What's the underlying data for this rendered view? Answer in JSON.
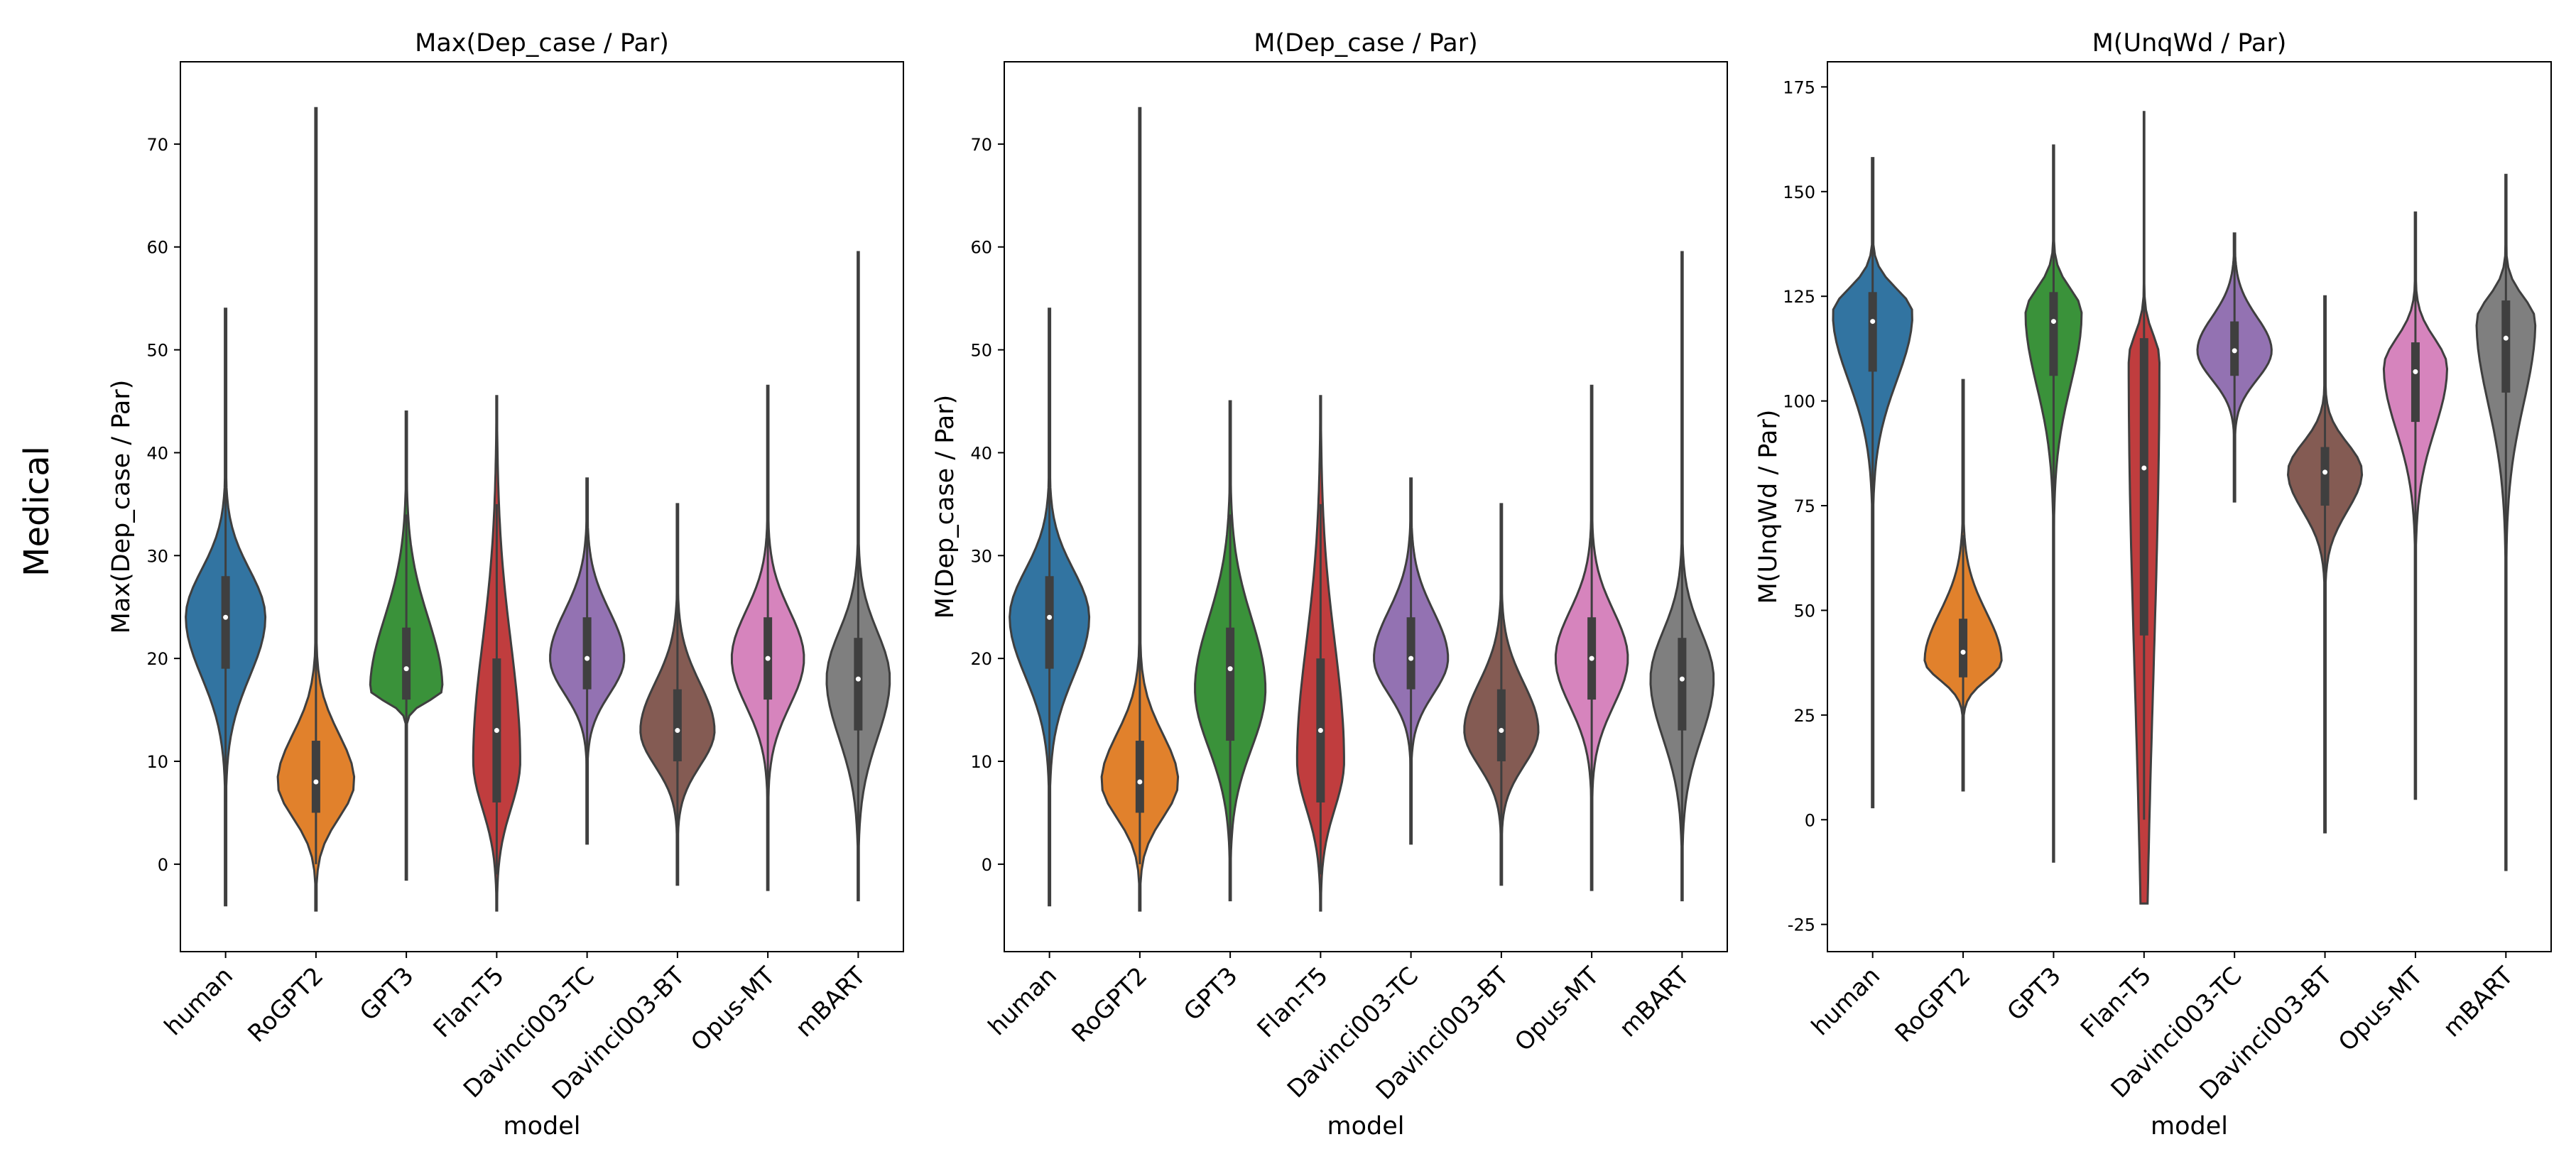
{
  "figure": {
    "row_label": "Medical"
  },
  "colors": {
    "human": "#3274a1",
    "RoGPT2": "#e1812c",
    "GPT3": "#3a923a",
    "Flan-T5": "#c03d3e",
    "Davinci003-TC": "#9372b2",
    "Davinci003-BT": "#845b53",
    "Opus-MT": "#d684bd",
    "mBART": "#7f7f7f"
  },
  "chart_data": [
    {
      "type": "violin",
      "title": "Max(Dep_case / Par)",
      "xlabel": "model",
      "ylabel": "Max(Dep_case / Par)",
      "categories": [
        "human",
        "RoGPT2",
        "GPT3",
        "Flan-T5",
        "Davinci003-TC",
        "Davinci003-BT",
        "Opus-MT",
        "mBART"
      ],
      "ylim": [
        -8.5,
        78
      ],
      "yticks": [
        0,
        10,
        20,
        30,
        40,
        50,
        60,
        70
      ],
      "violins": [
        {
          "min": -4,
          "max": 54,
          "q1": 19,
          "median": 24,
          "q3": 28,
          "w_lo": 6,
          "w_hi": 41,
          "mode": 24,
          "width": 0.88
        },
        {
          "min": -4.5,
          "max": 73.5,
          "q1": 5,
          "median": 8,
          "q3": 12,
          "w_lo": 0,
          "w_hi": 22,
          "mode": 8,
          "width": 0.85
        },
        {
          "min": -1.5,
          "max": 44,
          "q1": 16,
          "median": 19,
          "q3": 23,
          "w_lo": 6,
          "w_hi": 34,
          "mode": 17,
          "width": 0.8
        },
        {
          "min": -4.5,
          "max": 45.5,
          "q1": 6,
          "median": 13,
          "q3": 20,
          "w_lo": -1,
          "w_hi": 35,
          "mode": 10,
          "width": 0.52
        },
        {
          "min": 2,
          "max": 37.5,
          "q1": 17,
          "median": 20,
          "q3": 24,
          "w_lo": 8,
          "w_hi": 35,
          "mode": 20,
          "width": 0.82
        },
        {
          "min": -2,
          "max": 35,
          "q1": 10,
          "median": 13,
          "q3": 17,
          "w_lo": 0,
          "w_hi": 28,
          "mode": 13,
          "width": 0.82
        },
        {
          "min": -2.5,
          "max": 46.5,
          "q1": 16,
          "median": 20,
          "q3": 24,
          "w_lo": 4,
          "w_hi": 36,
          "mode": 20,
          "width": 0.8
        },
        {
          "min": -3.5,
          "max": 59.5,
          "q1": 13,
          "median": 18,
          "q3": 22,
          "w_lo": 0,
          "w_hi": 35,
          "mode": 18,
          "width": 0.7
        }
      ]
    },
    {
      "type": "violin",
      "title": "M(Dep_case / Par)",
      "xlabel": "model",
      "ylabel": "M(Dep_case / Par)",
      "categories": [
        "human",
        "RoGPT2",
        "GPT3",
        "Flan-T5",
        "Davinci003-TC",
        "Davinci003-BT",
        "Opus-MT",
        "mBART"
      ],
      "ylim": [
        -8.5,
        78
      ],
      "yticks": [
        0,
        10,
        20,
        30,
        40,
        50,
        60,
        70
      ],
      "violins": [
        {
          "min": -4,
          "max": 54,
          "q1": 19,
          "median": 24,
          "q3": 28,
          "w_lo": 6,
          "w_hi": 41,
          "mode": 24,
          "width": 0.88
        },
        {
          "min": -4.5,
          "max": 73.5,
          "q1": 5,
          "median": 8,
          "q3": 12,
          "w_lo": 0,
          "w_hi": 22,
          "mode": 8,
          "width": 0.85
        },
        {
          "min": -3.5,
          "max": 45,
          "q1": 12,
          "median": 19,
          "q3": 23,
          "w_lo": 2,
          "w_hi": 34,
          "mode": 17,
          "width": 0.78
        },
        {
          "min": -4.5,
          "max": 45.5,
          "q1": 6,
          "median": 13,
          "q3": 20,
          "w_lo": -1,
          "w_hi": 35,
          "mode": 10,
          "width": 0.52
        },
        {
          "min": 2,
          "max": 37.5,
          "q1": 17,
          "median": 20,
          "q3": 24,
          "w_lo": 8,
          "w_hi": 35,
          "mode": 20,
          "width": 0.82
        },
        {
          "min": -2,
          "max": 35,
          "q1": 10,
          "median": 13,
          "q3": 17,
          "w_lo": 0,
          "w_hi": 28,
          "mode": 13,
          "width": 0.82
        },
        {
          "min": -2.5,
          "max": 46.5,
          "q1": 16,
          "median": 20,
          "q3": 24,
          "w_lo": 4,
          "w_hi": 36,
          "mode": 20,
          "width": 0.8
        },
        {
          "min": -3.5,
          "max": 59.5,
          "q1": 13,
          "median": 18,
          "q3": 22,
          "w_lo": 0,
          "w_hi": 35,
          "mode": 18,
          "width": 0.7
        }
      ]
    },
    {
      "type": "violin",
      "title": "M(UnqWd / Par)",
      "xlabel": "model",
      "ylabel": "M(UnqWd / Par)",
      "categories": [
        "human",
        "RoGPT2",
        "GPT3",
        "Flan-T5",
        "Davinci003-TC",
        "Davinci003-BT",
        "Opus-MT",
        "mBART"
      ],
      "ylim": [
        -31.5,
        181
      ],
      "yticks": [
        -25,
        0,
        25,
        50,
        75,
        100,
        125,
        150,
        175
      ],
      "violins": [
        {
          "min": 3,
          "max": 158,
          "q1": 107,
          "median": 119,
          "q3": 126,
          "w_lo": 60,
          "w_hi": 150,
          "mode": 121,
          "width": 0.88
        },
        {
          "min": 7,
          "max": 105,
          "q1": 34,
          "median": 40,
          "q3": 48,
          "w_lo": 17,
          "w_hi": 68,
          "mode": 38,
          "width": 0.85
        },
        {
          "min": -10,
          "max": 161,
          "q1": 106,
          "median": 119,
          "q3": 126,
          "w_lo": 71,
          "w_hi": 150,
          "mode": 121,
          "width": 0.62
        },
        {
          "min": -20,
          "max": 169,
          "q1": 44,
          "median": 84,
          "q3": 115,
          "w_lo": 0,
          "w_hi": 140,
          "mode": 110,
          "width": 0.34
        },
        {
          "min": 76,
          "max": 140,
          "q1": 106,
          "median": 112,
          "q3": 119,
          "w_lo": 88,
          "w_hi": 134,
          "mode": 112,
          "width": 0.82
        },
        {
          "min": -3,
          "max": 125,
          "q1": 75,
          "median": 83,
          "q3": 89,
          "w_lo": 57,
          "w_hi": 110,
          "mode": 83,
          "width": 0.82
        },
        {
          "min": 5,
          "max": 145,
          "q1": 95,
          "median": 107,
          "q3": 114,
          "w_lo": 68,
          "w_hi": 138,
          "mode": 108,
          "width": 0.7
        },
        {
          "min": -12,
          "max": 154,
          "q1": 102,
          "median": 115,
          "q3": 124,
          "w_lo": 68,
          "w_hi": 148,
          "mode": 119,
          "width": 0.65
        }
      ]
    }
  ]
}
